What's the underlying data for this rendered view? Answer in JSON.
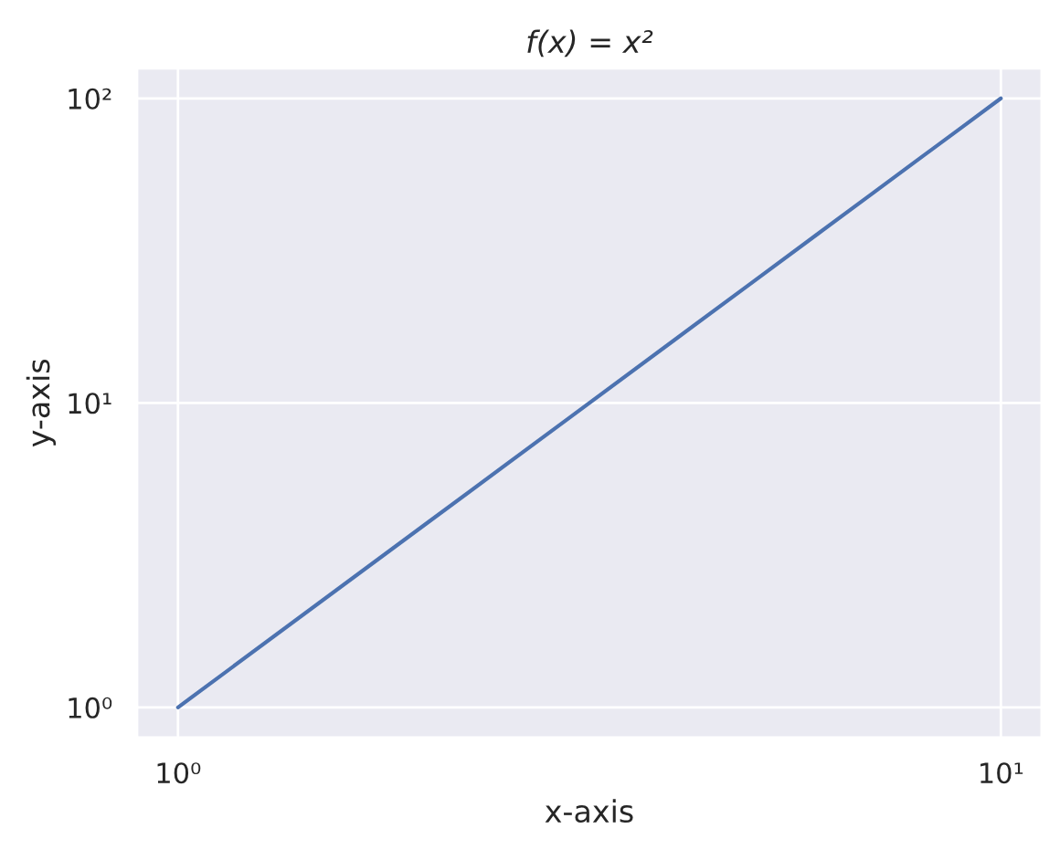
{
  "chart_data": {
    "type": "line",
    "title": "f(x) = x²",
    "xlabel": "x-axis",
    "ylabel": "y-axis",
    "x": [
      1,
      2,
      3,
      4,
      5,
      6,
      7,
      8,
      9,
      10
    ],
    "series": [
      {
        "color": "#4c72b0",
        "values": [
          1,
          4,
          9,
          16,
          25,
          36,
          49,
          64,
          81,
          100
        ]
      }
    ],
    "log": "xy",
    "xlim": [
      0.891,
      11.22
    ],
    "ylim": [
      0.794,
      125.9
    ],
    "xticks": [
      {
        "value": 1,
        "label": "10⁰"
      },
      {
        "value": 10,
        "label": "10¹"
      }
    ],
    "yticks": [
      {
        "value": 1,
        "label": "10⁰"
      },
      {
        "value": 10,
        "label": "10¹"
      },
      {
        "value": 100,
        "label": "10²"
      }
    ],
    "grid": true,
    "marker": "none",
    "line_style": "solid"
  }
}
